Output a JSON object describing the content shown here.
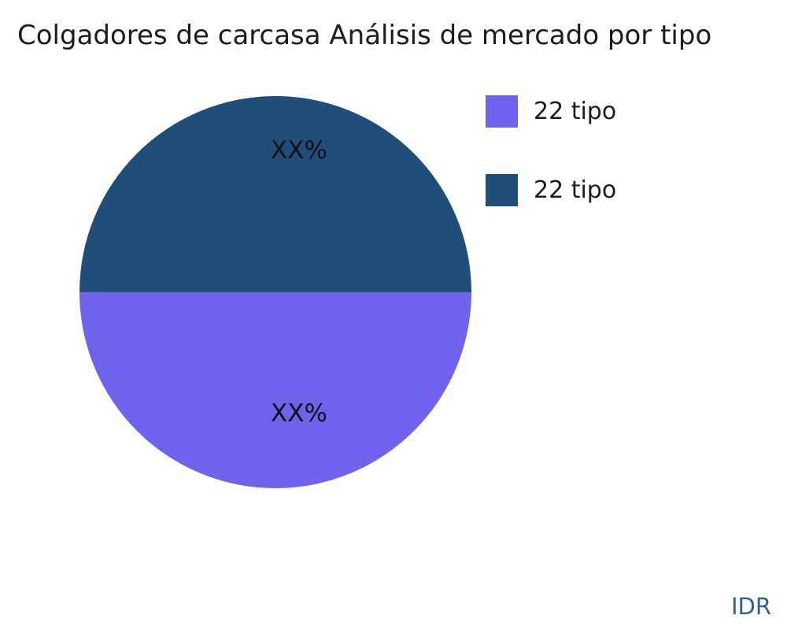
{
  "title": "Colgadores de carcasa Análisis de mercado por tipo",
  "watermark": "IDR",
  "colors": {
    "background": "#ffffff",
    "title_text": "#1c1c1c",
    "label_text": "#111111",
    "watermark_text": "#2f618f"
  },
  "chart_data": {
    "type": "pie",
    "title": "Colgadores de carcasa Análisis de mercado por tipo",
    "slices": [
      {
        "label": "22 tipo",
        "value": 50,
        "display_label": "XX%",
        "color": "#6f63ee",
        "position": "bottom-half"
      },
      {
        "label": "22 tipo",
        "value": 50,
        "display_label": "XX%",
        "color": "#204e7a",
        "position": "top-half"
      }
    ],
    "legend_position": "upper right",
    "legend": [
      "22 tipo",
      "22 tipo"
    ]
  }
}
